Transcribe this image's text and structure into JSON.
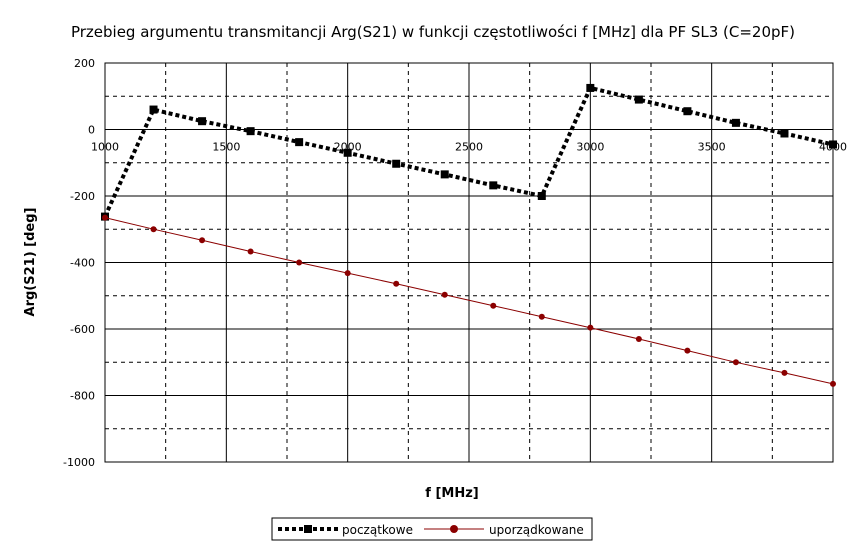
{
  "chart_data": {
    "type": "line",
    "title": "Przebieg argumentu transmitancji Arg(S21) w funkcji częstotliwości f [MHz] dla PF SL3 (C=20pF)",
    "xlabel": "f [MHz]",
    "ylabel": "Arg(S21) [deg]",
    "xlim": [
      1000,
      4000
    ],
    "ylim": [
      -1000,
      200
    ],
    "x_ticks": [
      1000,
      1500,
      2000,
      2500,
      3000,
      3500,
      4000
    ],
    "y_ticks": [
      200,
      0,
      -200,
      -400,
      -600,
      -800,
      -1000
    ],
    "x_ticks_labels": [
      "1000",
      "1500",
      "2000",
      "2500",
      "3000",
      "3500",
      "4000"
    ],
    "y_ticks_labels": [
      "200",
      "0",
      "-200",
      "-400",
      "-600",
      "-800",
      "-1000"
    ],
    "grid": true,
    "legend_position": "bottom",
    "series": [
      {
        "name": "początkowe",
        "color": "#000000",
        "x": [
          1000,
          1200,
          1400,
          1600,
          1800,
          2000,
          2200,
          2400,
          2600,
          2800,
          3000,
          3200,
          3400,
          3600,
          3800,
          4000
        ],
        "y": [
          -262,
          60,
          25,
          -5,
          -38,
          -70,
          -103,
          -135,
          -168,
          -200,
          125,
          90,
          55,
          20,
          -12,
          -45
        ]
      },
      {
        "name": "uporządkowane",
        "color": "#8b0000",
        "x": [
          1000,
          1200,
          1400,
          1600,
          1800,
          2000,
          2200,
          2400,
          2600,
          2800,
          3000,
          3200,
          3400,
          3600,
          3800,
          4000
        ],
        "y": [
          -265,
          -300,
          -333,
          -367,
          -400,
          -432,
          -464,
          -497,
          -530,
          -563,
          -596,
          -630,
          -665,
          -700,
          -732,
          -765
        ]
      }
    ]
  }
}
